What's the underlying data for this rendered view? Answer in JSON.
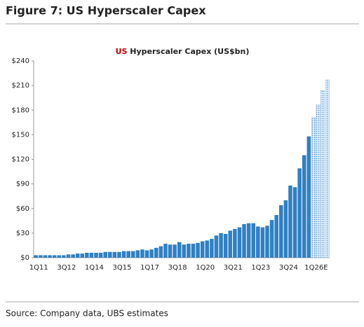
{
  "figure_title": "Figure 7: US Hyperscaler Capex",
  "source": "Source: Company data, UBS estimates",
  "chart_data": {
    "type": "bar",
    "title_prefix": "US",
    "title": "Hyperscaler Capex (US$bn)",
    "title_prefix_color": "#c00000",
    "categories": [
      "1Q11",
      null,
      null,
      null,
      null,
      null,
      "3Q12",
      null,
      null,
      null,
      null,
      null,
      "1Q14",
      null,
      null,
      null,
      null,
      null,
      "3Q15",
      null,
      null,
      null,
      null,
      null,
      "1Q17",
      null,
      null,
      null,
      null,
      null,
      "3Q18",
      null,
      null,
      null,
      null,
      null,
      "1Q20",
      null,
      null,
      null,
      null,
      null,
      "3Q21",
      null,
      null,
      null,
      null,
      null,
      "1Q23",
      null,
      null,
      null,
      null,
      null,
      "3Q24",
      null,
      null,
      null,
      null,
      null,
      "1Q26E",
      null,
      null,
      null
    ],
    "values": [
      3,
      3,
      3,
      3,
      3,
      3,
      3,
      4,
      4,
      5,
      5,
      6,
      6,
      6,
      6,
      7,
      7,
      7,
      7,
      8,
      8,
      8,
      9,
      10,
      9,
      10,
      12,
      14,
      17,
      16,
      16,
      19,
      16,
      17,
      17,
      18,
      20,
      21,
      23,
      27,
      30,
      29,
      33,
      35,
      37,
      41,
      42,
      42,
      38,
      37,
      39,
      46,
      52,
      64,
      70,
      88,
      86,
      109,
      125,
      148,
      171,
      187,
      204,
      217
    ],
    "color": "#2f80c4",
    "estimate_color": "#9fc7e8",
    "estimate_from": "1Q26E",
    "ylim": [
      0,
      240
    ],
    "yticks": [
      {
        "value": 0,
        "label": "$0"
      },
      {
        "value": 30,
        "label": "$30"
      },
      {
        "value": 60,
        "label": "$60"
      },
      {
        "value": 90,
        "label": "$90"
      },
      {
        "value": 120,
        "label": "$120"
      },
      {
        "value": 150,
        "label": "$150"
      },
      {
        "value": 180,
        "label": "$180"
      },
      {
        "value": 210,
        "label": "$210"
      },
      {
        "value": 240,
        "label": "$240"
      }
    ],
    "grid": false
  }
}
